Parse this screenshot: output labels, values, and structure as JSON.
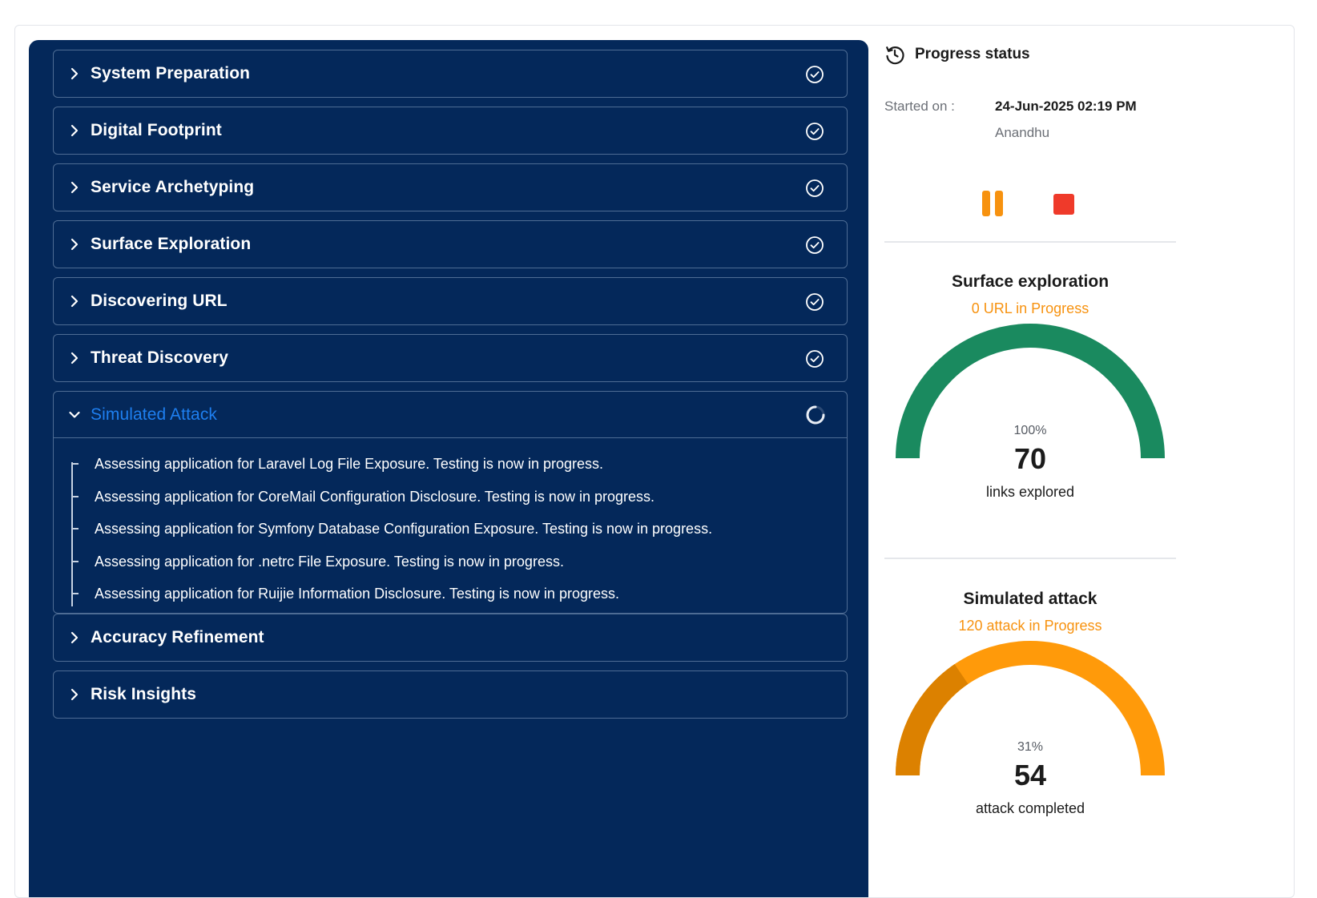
{
  "stages": [
    {
      "label": "System Preparation",
      "status": "completed"
    },
    {
      "label": "Digital Footprint",
      "status": "completed"
    },
    {
      "label": "Service Archetyping",
      "status": "completed"
    },
    {
      "label": "Surface Exploration",
      "status": "completed"
    },
    {
      "label": "Discovering URL",
      "status": "completed"
    },
    {
      "label": "Threat Discovery",
      "status": "completed"
    },
    {
      "label": "Simulated Attack",
      "status": "in-progress",
      "expanded": true
    },
    {
      "label": "Accuracy Refinement",
      "status": "pending"
    },
    {
      "label": "Risk Insights",
      "status": "pending"
    }
  ],
  "simulated_attack_tasks": [
    "Assessing application for Laravel Log File Exposure. Testing is now in progress.",
    "Assessing application for CoreMail Configuration Disclosure. Testing is now in progress.",
    "Assessing application for Symfony Database Configuration Exposure. Testing is now in progress.",
    "Assessing application for .netrc File Exposure. Testing is now in progress.",
    "Assessing application for Ruijie Information Disclosure. Testing is now in progress."
  ],
  "progress": {
    "title": "Progress status",
    "started_label": "Started on :",
    "started_value": "24-Jun-2025 02:19 PM",
    "started_by": "Anandhu"
  },
  "surface_gauge": {
    "title": "Surface exploration",
    "subtitle": "0 URL in Progress",
    "percent_label": "100%",
    "percent": 100,
    "value": "70",
    "caption": "links explored",
    "color": "#1a8a5f"
  },
  "attack_gauge": {
    "title": "Simulated attack",
    "subtitle": "120 attack in Progress",
    "percent_label": "31%",
    "percent": 31,
    "value": "54",
    "caption": "attack completed",
    "color_done": "#dc8100",
    "color_remaining": "#ff9a0a"
  },
  "colors": {
    "panel": "#04285a",
    "active": "#1e7ff0",
    "accent": "#f7920f",
    "stop": "#ef3a2a"
  }
}
